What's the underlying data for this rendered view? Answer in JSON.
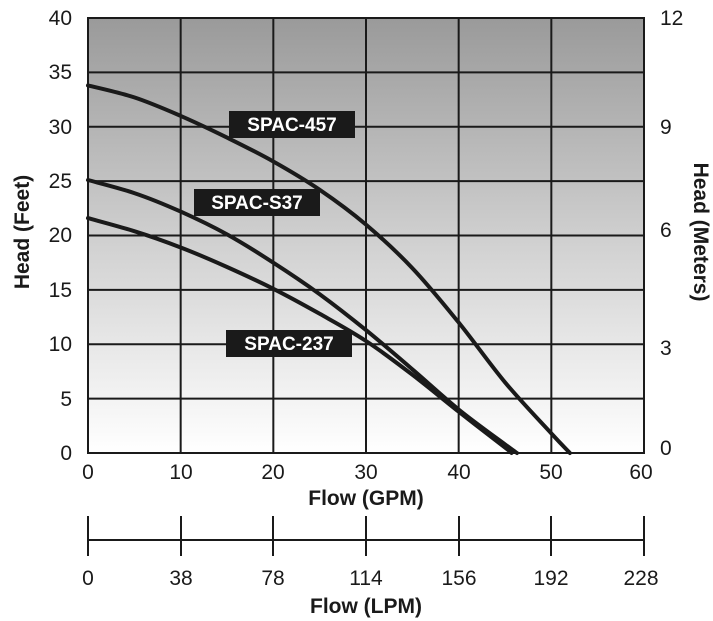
{
  "chart_data": {
    "type": "line",
    "xlabel": "Flow (GPM)",
    "ylabel": "Head (Feet)",
    "y2label": "Head (Meters)",
    "x2label": "Flow (LPM)",
    "xlim": [
      0,
      60
    ],
    "ylim": [
      0,
      40
    ],
    "y2lim": [
      0,
      12
    ],
    "x_ticks": [
      "0",
      "10",
      "20",
      "30",
      "40",
      "50",
      "60"
    ],
    "y_ticks": [
      "0",
      "5",
      "10",
      "15",
      "20",
      "25",
      "30",
      "35",
      "40"
    ],
    "y2_ticks": [
      "0",
      "3",
      "6",
      "9",
      "12"
    ],
    "x2_ticks": [
      "0",
      "38",
      "78",
      "114",
      "156",
      "192",
      "228"
    ],
    "grid": true,
    "background": "gradient gray (dark top to white bottom)",
    "series": [
      {
        "name": "SPAC-457",
        "x": [
          0,
          5,
          10,
          15,
          20,
          25,
          30,
          35,
          40,
          45,
          50,
          52
        ],
        "y": [
          33.8,
          32.7,
          31.0,
          29.0,
          26.8,
          24.2,
          21.0,
          17.0,
          12.0,
          6.5,
          1.8,
          0
        ]
      },
      {
        "name": "SPAC-S37",
        "x": [
          0,
          5,
          10,
          15,
          20,
          25,
          30,
          35,
          40,
          45,
          46.3
        ],
        "y": [
          25.1,
          23.9,
          22.2,
          20.1,
          17.5,
          14.6,
          11.3,
          7.7,
          4.0,
          0.8,
          0
        ]
      },
      {
        "name": "SPAC-237",
        "x": [
          0,
          5,
          10,
          15,
          20,
          25,
          30,
          35,
          40,
          45,
          45.7
        ],
        "y": [
          21.6,
          20.4,
          18.9,
          17.1,
          15.1,
          12.8,
          10.3,
          7.2,
          3.8,
          0.5,
          0
        ]
      }
    ]
  }
}
